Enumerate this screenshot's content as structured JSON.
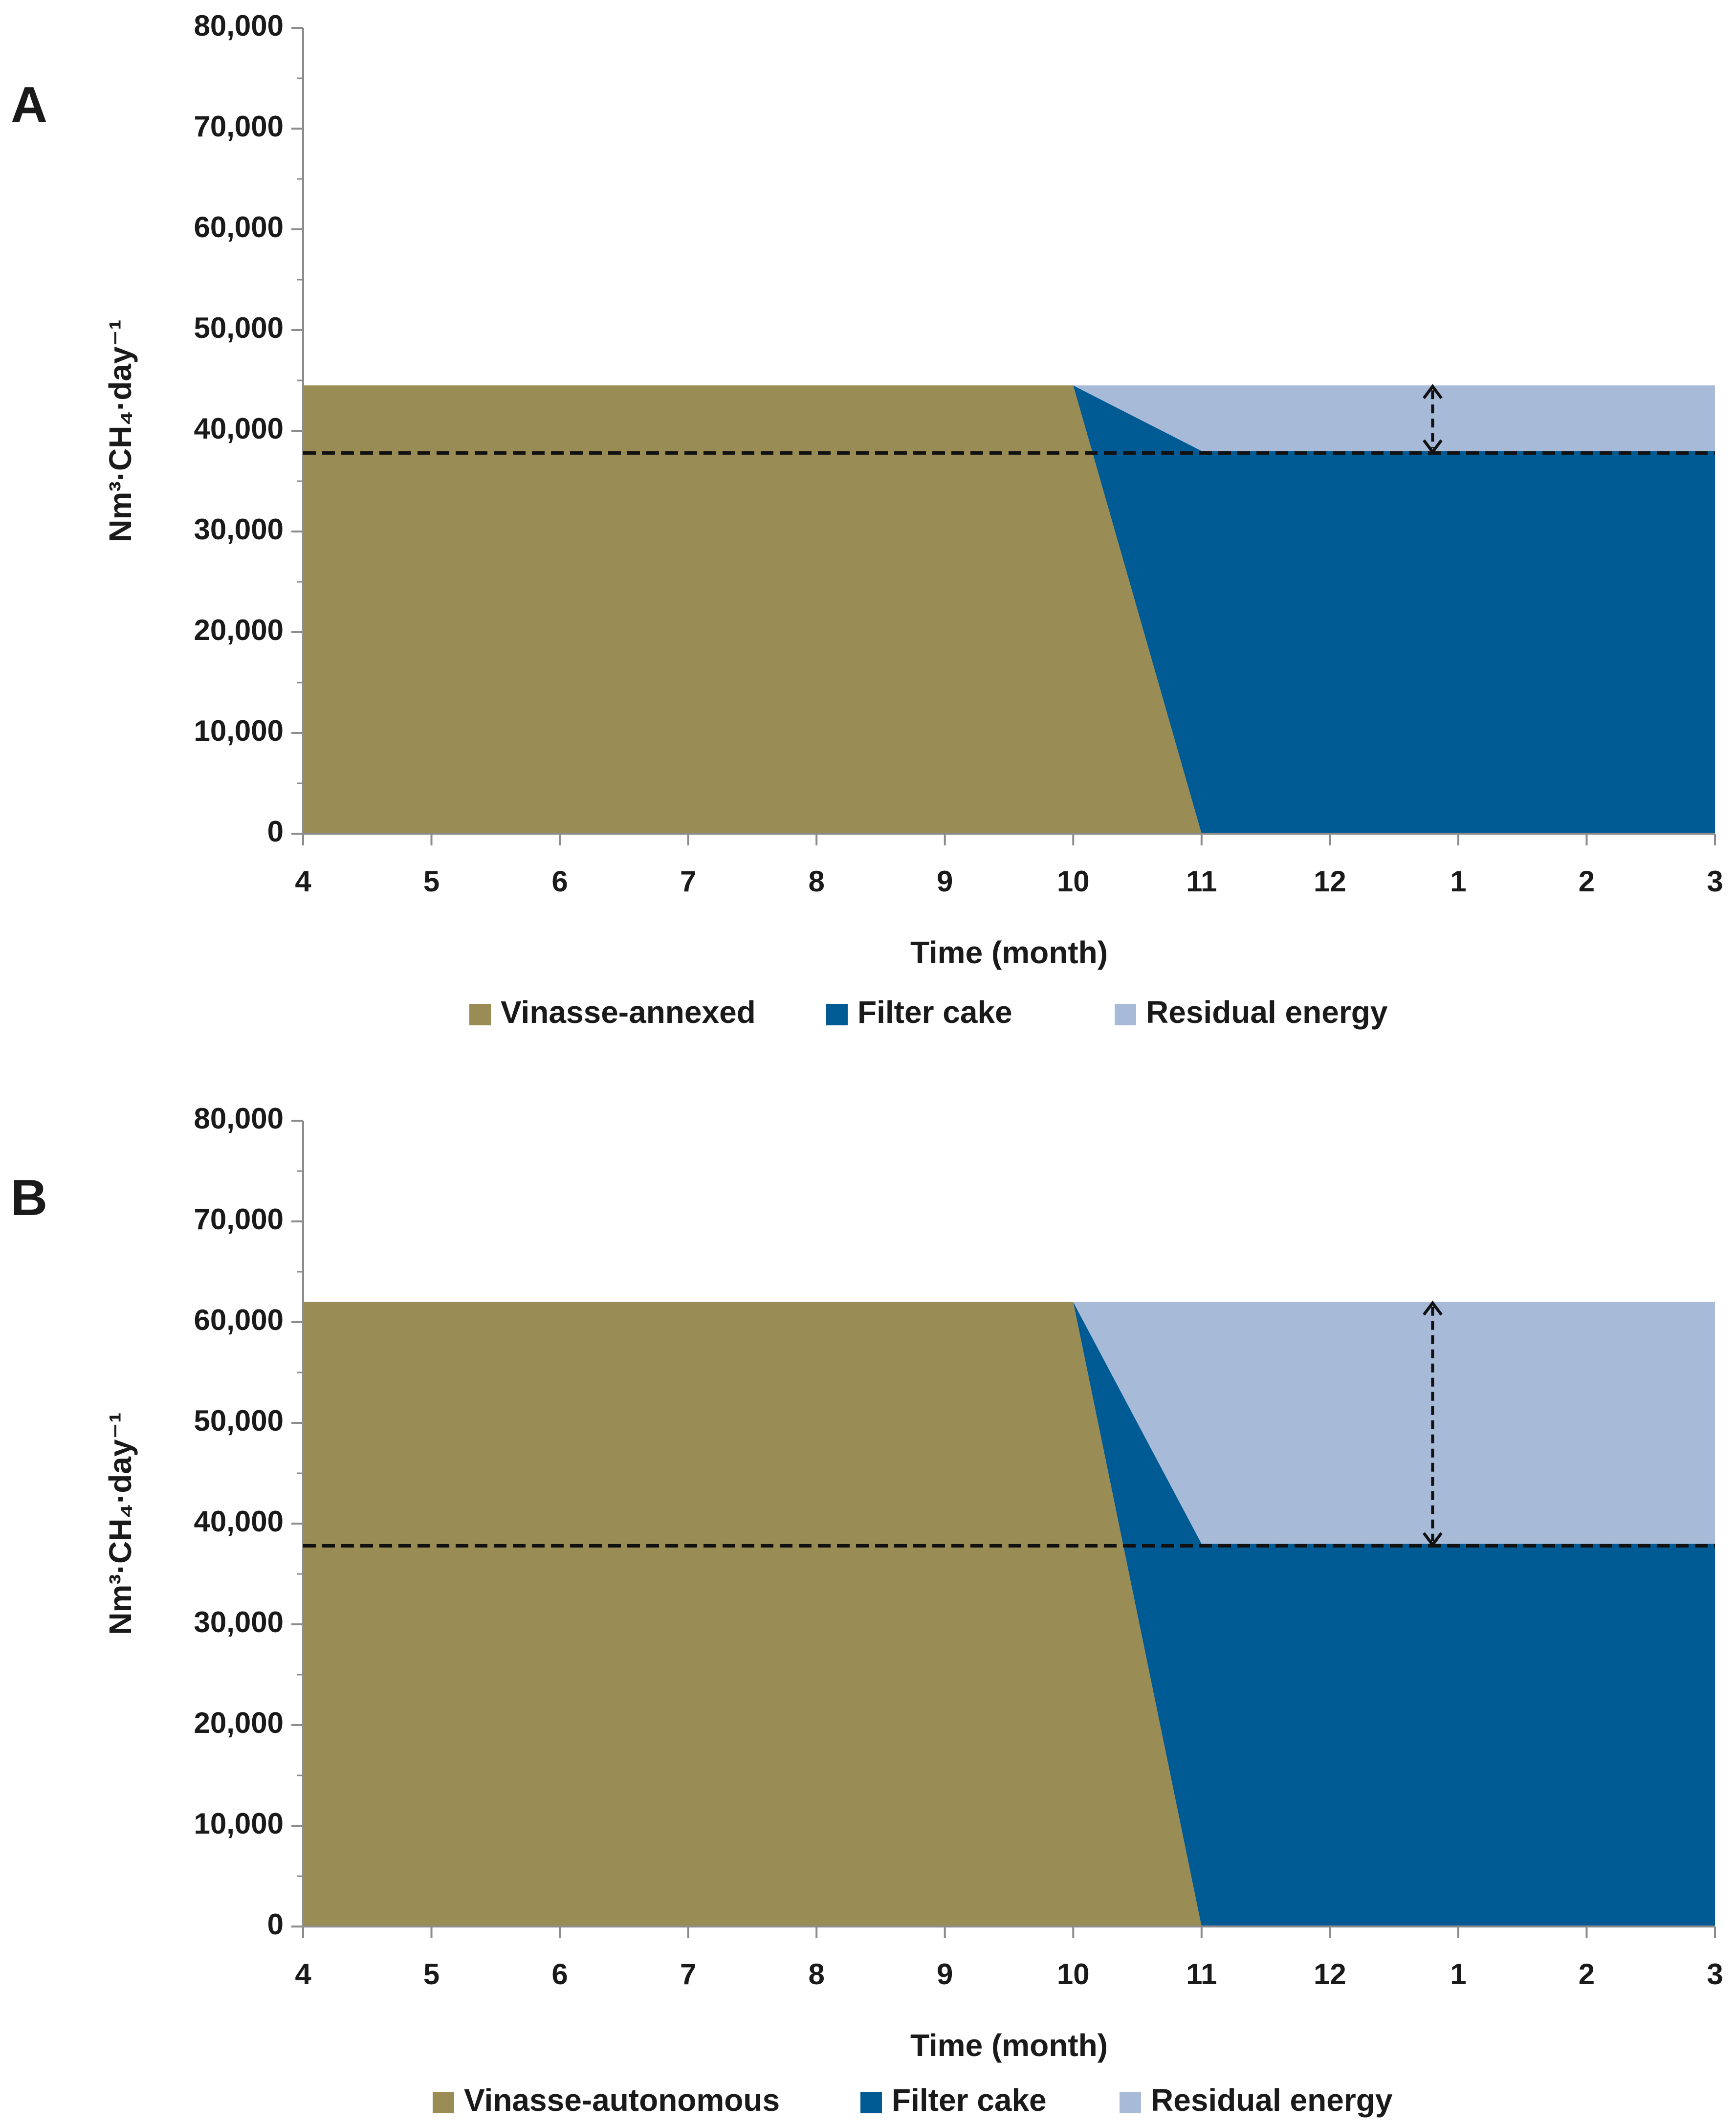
{
  "figure": {
    "panels": [
      {
        "letter": "A",
        "legend": [
          {
            "label": "Vinasse-annexed",
            "color": "#998c54"
          },
          {
            "label": "Filter cake",
            "color": "#005b94"
          },
          {
            "label": "Residual energy",
            "color": "#a7bad8"
          }
        ]
      },
      {
        "letter": "B",
        "legend": [
          {
            "label": "Vinasse-autonomous",
            "color": "#998c54"
          },
          {
            "label": "Filter cake",
            "color": "#005b94"
          },
          {
            "label": "Residual energy",
            "color": "#a7bad8"
          }
        ]
      }
    ]
  },
  "chart_data": [
    {
      "panel": "A",
      "type": "area",
      "title": "",
      "xlabel": "Time (month)",
      "ylabel": "Nm³·CH₄·day⁻¹",
      "x": [
        0,
        1,
        2,
        3,
        4,
        5,
        6,
        7,
        8,
        9,
        10,
        11
      ],
      "categories": [
        "4",
        "5",
        "6",
        "7",
        "8",
        "9",
        "10",
        "11",
        "12",
        "1",
        "2",
        "3"
      ],
      "ylim": [
        0,
        80000
      ],
      "yticks": [
        0,
        10000,
        20000,
        30000,
        40000,
        50000,
        60000,
        70000,
        80000
      ],
      "ytick_labels": [
        "0",
        "10,000",
        "20,000",
        "30,000",
        "40,000",
        "50,000",
        "60,000",
        "70,000",
        "80,000"
      ],
      "series": [
        {
          "name": "Vinasse-annexed",
          "color": "#998c54",
          "x": [
            0,
            6,
            7,
            11
          ],
          "values": [
            44500,
            44500,
            0,
            0
          ]
        },
        {
          "name": "Filter cake",
          "color": "#005b94",
          "x": [
            0,
            6,
            7,
            11
          ],
          "values": [
            0,
            0,
            38000,
            38000
          ]
        },
        {
          "name": "Residual energy",
          "color": "#a7bad8",
          "x": [
            0,
            6,
            7,
            11
          ],
          "values": [
            0,
            0,
            6500,
            6500
          ]
        }
      ],
      "demand_line": {
        "value": 37800,
        "style": "dashed"
      },
      "arrow": {
        "x": 8.8,
        "from": 37800,
        "to": 44500,
        "style": "dashed double-headed"
      }
    },
    {
      "panel": "B",
      "type": "area",
      "title": "",
      "xlabel": "Time (month)",
      "ylabel": "Nm³·CH₄·day⁻¹",
      "x": [
        0,
        1,
        2,
        3,
        4,
        5,
        6,
        7,
        8,
        9,
        10,
        11
      ],
      "categories": [
        "4",
        "5",
        "6",
        "7",
        "8",
        "9",
        "10",
        "11",
        "12",
        "1",
        "2",
        "3"
      ],
      "ylim": [
        0,
        80000
      ],
      "yticks": [
        0,
        10000,
        20000,
        30000,
        40000,
        50000,
        60000,
        70000,
        80000
      ],
      "ytick_labels": [
        "0",
        "10,000",
        "20,000",
        "30,000",
        "40,000",
        "50,000",
        "60,000",
        "70,000",
        "80,000"
      ],
      "series": [
        {
          "name": "Vinasse-autonomous",
          "color": "#998c54",
          "x": [
            0,
            6,
            7,
            11
          ],
          "values": [
            62000,
            62000,
            0,
            0
          ]
        },
        {
          "name": "Filter cake",
          "color": "#005b94",
          "x": [
            0,
            6,
            7,
            11
          ],
          "values": [
            0,
            0,
            38000,
            38000
          ]
        },
        {
          "name": "Residual energy",
          "color": "#a7bad8",
          "x": [
            0,
            6,
            7,
            11
          ],
          "values": [
            0,
            0,
            24000,
            24000
          ]
        }
      ],
      "demand_line": {
        "value": 37800,
        "style": "dashed"
      },
      "arrow": {
        "x": 8.8,
        "from": 37800,
        "to": 62000,
        "style": "dashed double-headed"
      }
    }
  ]
}
